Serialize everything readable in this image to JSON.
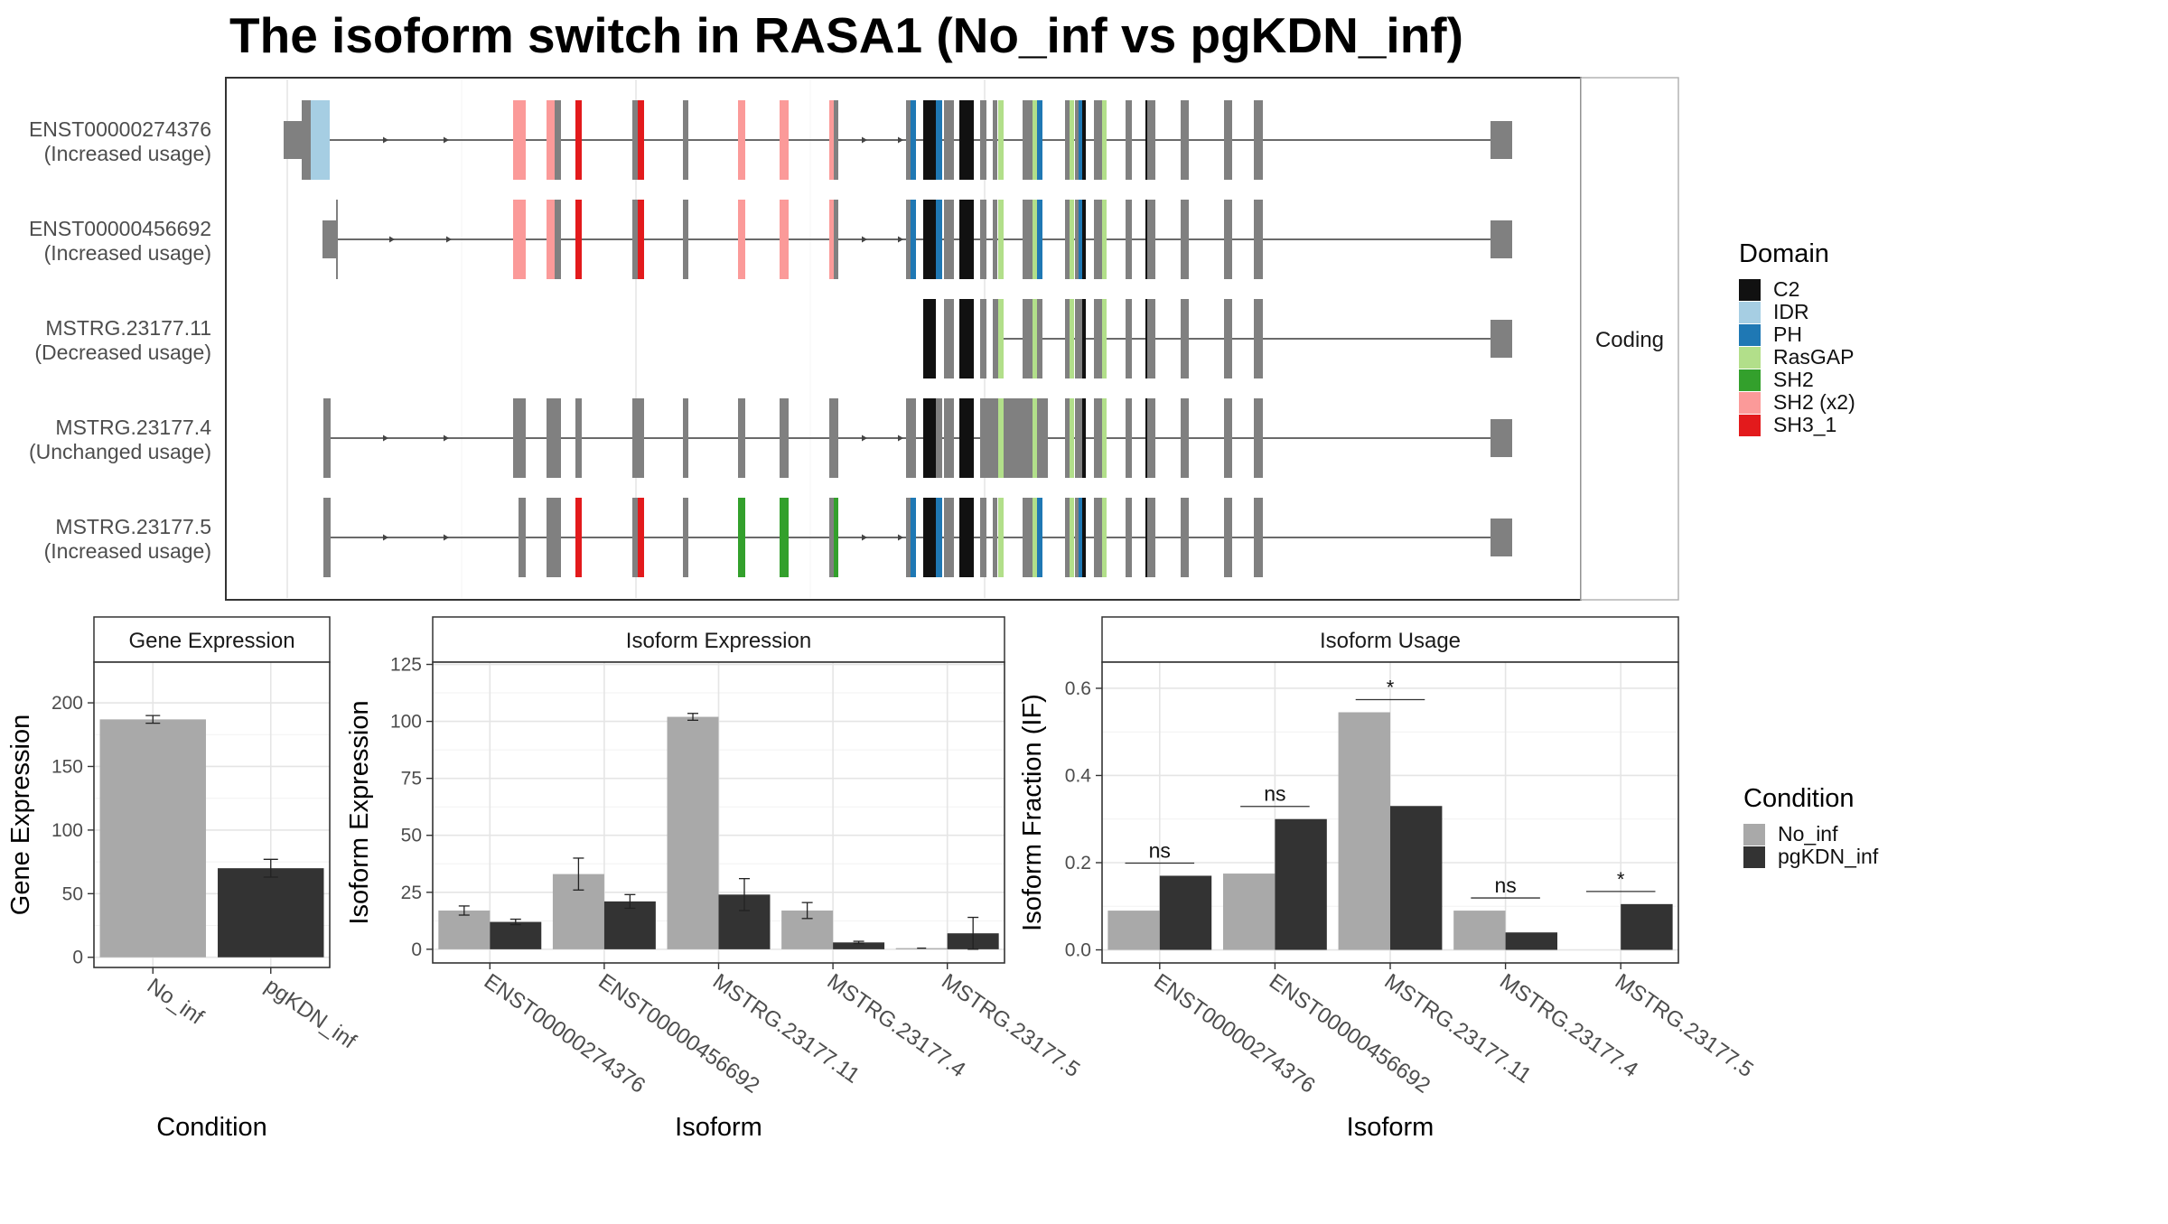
{
  "title": "The isoform switch in RASA1 (No_inf vs pgKDN_inf)",
  "structure": {
    "strip_label": "Coding",
    "isoforms": [
      {
        "id": "ENST00000274376",
        "usage": "(Increased usage)"
      },
      {
        "id": "ENST00000456692",
        "usage": "(Increased usage)"
      },
      {
        "id": "MSTRG.23177.11",
        "usage": "(Decreased usage)"
      },
      {
        "id": "MSTRG.23177.4",
        "usage": "(Unchanged usage)"
      },
      {
        "id": "MSTRG.23177.5",
        "usage": "(Increased usage)"
      }
    ]
  },
  "domain_legend": {
    "title": "Domain",
    "items": [
      {
        "label": "C2",
        "color": "#111111"
      },
      {
        "label": "IDR",
        "color": "#a6cee3"
      },
      {
        "label": "PH",
        "color": "#1f78b4"
      },
      {
        "label": "RasGAP",
        "color": "#b2df8a"
      },
      {
        "label": "SH2",
        "color": "#33a02c"
      },
      {
        "label": "SH2 (x2)",
        "color": "#fb9a99"
      },
      {
        "label": "SH3_1",
        "color": "#e31a1c"
      }
    ]
  },
  "condition_legend": {
    "title": "Condition",
    "items": [
      {
        "label": "No_inf",
        "color": "#a9a9a9"
      },
      {
        "label": "pgKDN_inf",
        "color": "#333333"
      }
    ]
  },
  "chart_data": [
    {
      "type": "bar",
      "title": "Gene Expression",
      "xlabel": "Condition",
      "ylabel": "Gene Expression",
      "categories": [
        "No_inf",
        "pgKDN_inf"
      ],
      "values": [
        187,
        70
      ],
      "errors": [
        3,
        7
      ],
      "colors": [
        "#a9a9a9",
        "#333333"
      ],
      "ylim": [
        -8,
        232
      ],
      "yticks": [
        0,
        50,
        100,
        150,
        200
      ]
    },
    {
      "type": "bar",
      "title": "Isoform Expression",
      "xlabel": "Isoform",
      "ylabel": "Isoform Expression",
      "categories": [
        "ENST00000274376",
        "ENST00000456692",
        "MSTRG.23177.11",
        "MSTRG.23177.4",
        "MSTRG.23177.5"
      ],
      "series": [
        {
          "name": "No_inf",
          "values": [
            17,
            33,
            102,
            17,
            0.5
          ],
          "errors": [
            2,
            7,
            1.5,
            3.5,
            0
          ]
        },
        {
          "name": "pgKDN_inf",
          "values": [
            12,
            21,
            24,
            3,
            7
          ],
          "errors": [
            1.2,
            3,
            7,
            0.5,
            7
          ]
        }
      ],
      "ylim": [
        -6,
        126
      ],
      "yticks": [
        0,
        25,
        50,
        75,
        100,
        125
      ]
    },
    {
      "type": "bar",
      "title": "Isoform Usage",
      "xlabel": "Isoform",
      "ylabel": "Isoform Fraction (IF)",
      "categories": [
        "ENST00000274376",
        "ENST00000456692",
        "MSTRG.23177.11",
        "MSTRG.23177.4",
        "MSTRG.23177.5"
      ],
      "series": [
        {
          "name": "No_inf",
          "values": [
            0.09,
            0.175,
            0.545,
            0.09,
            0
          ]
        },
        {
          "name": "pgKDN_inf",
          "values": [
            0.17,
            0.3,
            0.33,
            0.04,
            0.105
          ]
        }
      ],
      "significance": [
        "ns",
        "ns",
        "*",
        "ns",
        "*"
      ],
      "ylim": [
        -0.03,
        0.66
      ],
      "yticks": [
        0.0,
        0.2,
        0.4,
        0.6
      ],
      "ytick_labels": [
        "0.0",
        "0.2",
        "0.4",
        "0.6"
      ]
    }
  ]
}
